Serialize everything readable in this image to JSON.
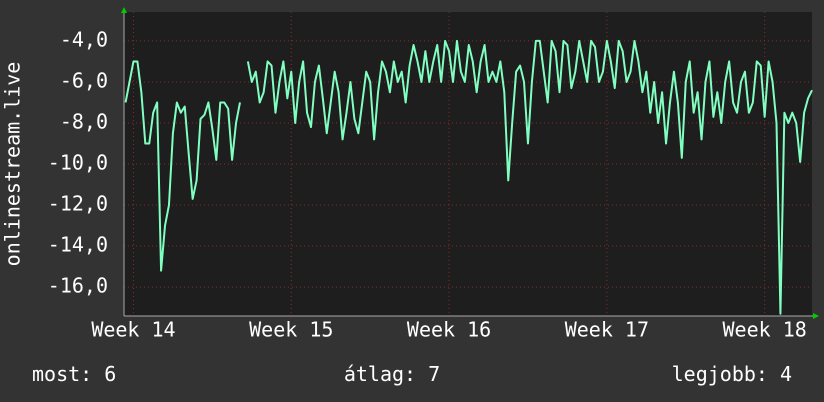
{
  "chart_data": {
    "type": "line",
    "ylabel": "onlinestream.live",
    "xlim": [
      13.94,
      18.3
    ],
    "xticks": [
      {
        "value": 14,
        "label": "Week 14"
      },
      {
        "value": 15,
        "label": "Week 15"
      },
      {
        "value": 16,
        "label": "Week 16"
      },
      {
        "value": 17,
        "label": "Week 17"
      },
      {
        "value": 18,
        "label": "Week 18"
      }
    ],
    "ylim": [
      -17.41,
      -2.59
    ],
    "yticks": [
      {
        "value": -4,
        "label": "-4,0"
      },
      {
        "value": -6,
        "label": "-6,0"
      },
      {
        "value": -8,
        "label": "-8,0"
      },
      {
        "value": -10,
        "label": "-10,0"
      },
      {
        "value": -12,
        "label": "-12,0"
      },
      {
        "value": -14,
        "label": "-14,0"
      },
      {
        "value": -16,
        "label": "-16,0"
      }
    ],
    "grid": true,
    "x": [
      13.95,
      13.975,
      14.0,
      14.025,
      14.05,
      14.075,
      14.1,
      14.125,
      14.15,
      14.175,
      14.2,
      14.225,
      14.25,
      14.275,
      14.3,
      14.325,
      14.35,
      14.375,
      14.4,
      14.425,
      14.45,
      14.475,
      14.5,
      14.525,
      14.55,
      14.575,
      14.6,
      14.625,
      14.65,
      14.675,
      14.7,
      14.725,
      14.75,
      14.775,
      14.8,
      14.825,
      14.85,
      14.875,
      14.9,
      14.925,
      14.95,
      14.975,
      15.0,
      15.025,
      15.05,
      15.075,
      15.1,
      15.125,
      15.15,
      15.175,
      15.2,
      15.225,
      15.25,
      15.275,
      15.3,
      15.325,
      15.35,
      15.375,
      15.4,
      15.425,
      15.45,
      15.475,
      15.5,
      15.525,
      15.55,
      15.575,
      15.6,
      15.625,
      15.65,
      15.675,
      15.7,
      15.725,
      15.75,
      15.775,
      15.8,
      15.825,
      15.85,
      15.875,
      15.9,
      15.925,
      15.95,
      15.975,
      16.0,
      16.025,
      16.05,
      16.075,
      16.1,
      16.125,
      16.15,
      16.175,
      16.2,
      16.225,
      16.25,
      16.275,
      16.3,
      16.325,
      16.35,
      16.375,
      16.4,
      16.425,
      16.45,
      16.475,
      16.5,
      16.525,
      16.55,
      16.575,
      16.6,
      16.625,
      16.65,
      16.675,
      16.7,
      16.725,
      16.75,
      16.775,
      16.8,
      16.825,
      16.85,
      16.875,
      16.9,
      16.925,
      16.95,
      16.975,
      17.0,
      17.025,
      17.05,
      17.075,
      17.1,
      17.125,
      17.15,
      17.175,
      17.2,
      17.225,
      17.25,
      17.275,
      17.3,
      17.325,
      17.35,
      17.375,
      17.4,
      17.425,
      17.45,
      17.475,
      17.5,
      17.525,
      17.55,
      17.575,
      17.6,
      17.625,
      17.65,
      17.675,
      17.7,
      17.725,
      17.75,
      17.775,
      17.8,
      17.825,
      17.85,
      17.875,
      17.9,
      17.925,
      17.95,
      17.975,
      18.0,
      18.025,
      18.05,
      18.075,
      18.1,
      18.125,
      18.15,
      18.175,
      18.2,
      18.225,
      18.25,
      18.275,
      18.3
    ],
    "series": [
      {
        "color": "#80ffc0",
        "values": [
          -7,
          -6,
          -5,
          -5,
          -6.5,
          -9,
          -9,
          -7.5,
          -7,
          -15.2,
          -13,
          -12,
          -8.5,
          -7,
          -7.5,
          -7.2,
          -9.5,
          -11.7,
          -10.8,
          -7.8,
          -7.6,
          -7,
          -8.3,
          -9.8,
          -7,
          -7,
          -7.3,
          -9.8,
          -8,
          -7,
          null,
          -5,
          -6,
          -5.5,
          -7,
          -6.5,
          -5,
          -5.2,
          -7.5,
          -6,
          -5,
          -6.8,
          -5.5,
          -8,
          -6,
          -5,
          -7.5,
          -8.2,
          -6,
          -5.2,
          -6.8,
          -8.5,
          -7,
          -5.5,
          -6.5,
          -8.8,
          -7.5,
          -6,
          -7.8,
          -8.5,
          -7,
          -5.5,
          -6,
          -8.8,
          -6.5,
          -5,
          -5.5,
          -6.5,
          -5,
          -6,
          -5.5,
          -7,
          -5.2,
          -4.2,
          -5,
          -6,
          -4.5,
          -6,
          -5,
          -4.2,
          -6,
          -4,
          -4.5,
          -6,
          -4,
          -5.5,
          -6,
          -4.2,
          -5,
          -6.5,
          -5,
          -4.2,
          -6,
          -5.5,
          -6,
          -5,
          -6.5,
          -10.8,
          -8,
          -5.5,
          -5.2,
          -6,
          -9,
          -6,
          -4,
          -4,
          -5.5,
          -7,
          -4,
          -4.5,
          -6.5,
          -4,
          -4.2,
          -6.3,
          -5.5,
          -4,
          -5,
          -6,
          -4,
          -4.3,
          -6,
          -5.5,
          -4,
          -5,
          -6.3,
          -4,
          -4.5,
          -6,
          -5.5,
          -4,
          -5,
          -6.5,
          -5.5,
          -7.5,
          -6,
          -8,
          -6.5,
          -9,
          -7,
          -5.5,
          -7,
          -9.7,
          -6,
          -5,
          -7.5,
          -6.5,
          -8.8,
          -6,
          -5,
          -7.7,
          -6.5,
          -8,
          -6,
          -5,
          -7,
          -7.5,
          -6,
          -5.5,
          -7.5,
          -7,
          -5,
          -5.2,
          -7.7,
          -5,
          -6,
          -8,
          -17.3,
          -7.5,
          -8,
          -7.5,
          -8,
          -9.9,
          -7.5,
          -6.8,
          -6.4
        ]
      }
    ],
    "stats": [
      {
        "label": "most:",
        "value": 6
      },
      {
        "label": "átlag:",
        "value": 7
      },
      {
        "label": "legjobb:",
        "value": 4
      }
    ]
  }
}
